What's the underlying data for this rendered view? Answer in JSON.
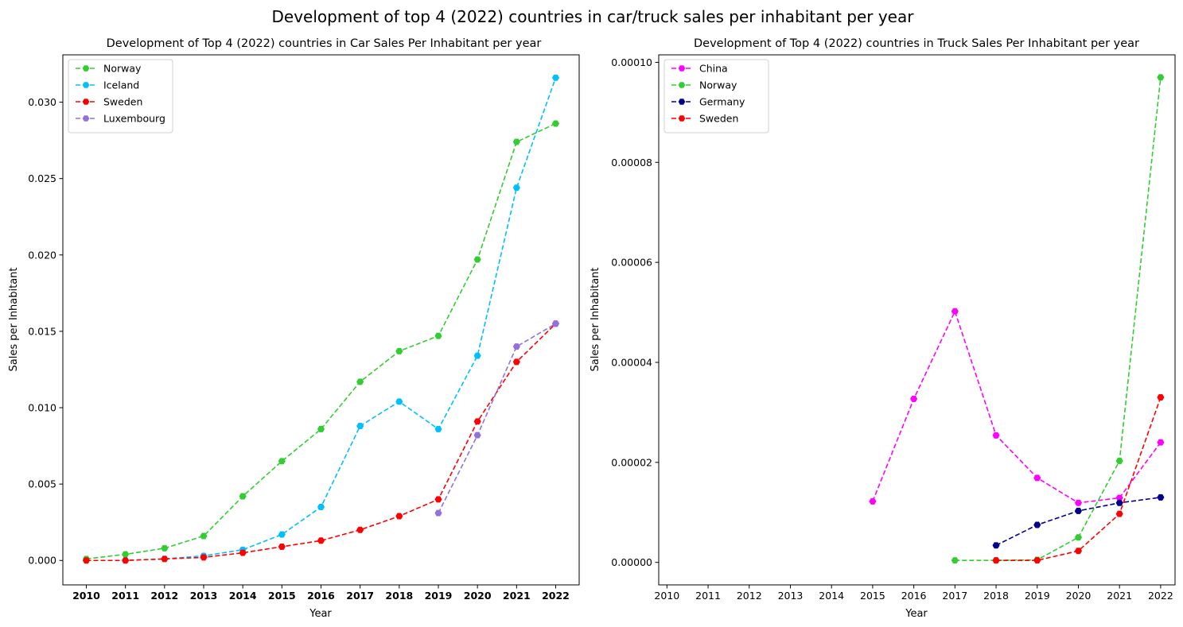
{
  "figure_title": "Development of top 4 (2022) countries in car/truck sales per inhabitant per year",
  "chart_data": [
    {
      "type": "line",
      "title": "Development of Top 4 (2022) countries in Car Sales Per Inhabitant per year",
      "xlabel": "Year",
      "ylabel": "Sales per Inhabitant",
      "x_ticks": [
        "2010",
        "2011",
        "2012",
        "2013",
        "2014",
        "2015",
        "2016",
        "2017",
        "2018",
        "2019",
        "2020",
        "2021",
        "2022"
      ],
      "x_tick_labels_bold": true,
      "xlim": [
        2009.4,
        2022.6
      ],
      "ylim": [
        -0.0016,
        0.0331
      ],
      "y_ticks": [
        0.0,
        0.005,
        0.01,
        0.015,
        0.02,
        0.025,
        0.03
      ],
      "y_tick_labels": [
        "0.000",
        "0.005",
        "0.010",
        "0.015",
        "0.020",
        "0.025",
        "0.030"
      ],
      "grid": false,
      "legend_position": "top-left",
      "line_style": "dashed",
      "marker": "hexagon",
      "series": [
        {
          "name": "Norway",
          "color": "#32cd32",
          "x": [
            2010,
            2011,
            2012,
            2013,
            2014,
            2015,
            2016,
            2017,
            2018,
            2019,
            2020,
            2021,
            2022
          ],
          "y": [
            0.0001,
            0.0004,
            0.0008,
            0.0016,
            0.0042,
            0.0065,
            0.0086,
            0.0117,
            0.0137,
            0.0147,
            0.0197,
            0.0274,
            0.0286
          ]
        },
        {
          "name": "Iceland",
          "color": "#00bfff",
          "x": [
            2010,
            2011,
            2012,
            2013,
            2014,
            2015,
            2016,
            2017,
            2018,
            2019,
            2020,
            2021,
            2022
          ],
          "y": [
            0.0,
            0.0,
            0.0001,
            0.0003,
            0.0007,
            0.0017,
            0.0035,
            0.0088,
            0.0104,
            0.0086,
            0.0134,
            0.0244,
            0.0316
          ]
        },
        {
          "name": "Sweden",
          "color": "#ff0000",
          "x": [
            2010,
            2011,
            2012,
            2013,
            2014,
            2015,
            2016,
            2017,
            2018,
            2019,
            2020,
            2021,
            2022
          ],
          "y": [
            0.0,
            0.0,
            0.0001,
            0.0002,
            0.0005,
            0.0009,
            0.0013,
            0.002,
            0.0029,
            0.004,
            0.0091,
            0.013,
            0.0155
          ]
        },
        {
          "name": "Luxembourg",
          "color": "#9370db",
          "x": [
            2019,
            2020,
            2021,
            2022
          ],
          "y": [
            0.0031,
            0.0082,
            0.014,
            0.0155
          ]
        }
      ]
    },
    {
      "type": "line",
      "title": "Development of Top 4 (2022) countries in Truck Sales Per Inhabitant per year",
      "xlabel": "Year",
      "ylabel": "Sales per Inhabitant",
      "x_ticks": [
        "2010",
        "2011",
        "2012",
        "2013",
        "2014",
        "2015",
        "2016",
        "2017",
        "2018",
        "2019",
        "2020",
        "2021",
        "2022"
      ],
      "x_tick_labels_bold": false,
      "xlim": [
        2009.8,
        2022.35
      ],
      "ylim": [
        -4.5e-06,
        0.0001015
      ],
      "y_ticks": [
        0.0,
        2e-05,
        4e-05,
        6e-05,
        8e-05,
        0.0001
      ],
      "y_tick_labels": [
        "0.00000",
        "0.00002",
        "0.00004",
        "0.00006",
        "0.00008",
        "0.00010"
      ],
      "grid": false,
      "legend_position": "top-left",
      "line_style": "dashed",
      "marker": "hexagon",
      "series": [
        {
          "name": "China",
          "color": "#ff00ff",
          "x": [
            2015,
            2016,
            2017,
            2018,
            2019,
            2020,
            2021,
            2022
          ],
          "y": [
            1.22e-05,
            3.27e-05,
            5.02e-05,
            2.54e-05,
            1.69e-05,
            1.19e-05,
            1.29e-05,
            2.4e-05
          ]
        },
        {
          "name": "Norway",
          "color": "#32cd32",
          "x": [
            2017,
            2018,
            2019,
            2020,
            2021,
            2022
          ],
          "y": [
            4e-07,
            4e-07,
            5e-07,
            5e-06,
            2.03e-05,
            9.7e-05
          ]
        },
        {
          "name": "Germany",
          "color": "#00008b",
          "x": [
            2018,
            2019,
            2020,
            2021,
            2022
          ],
          "y": [
            3.4e-06,
            7.5e-06,
            1.03e-05,
            1.19e-05,
            1.3e-05
          ]
        },
        {
          "name": "Sweden",
          "color": "#ff0000",
          "x": [
            2018,
            2019,
            2020,
            2021,
            2022
          ],
          "y": [
            4e-07,
            4e-07,
            2.3e-06,
            9.7e-06,
            3.3e-05
          ]
        }
      ]
    }
  ]
}
